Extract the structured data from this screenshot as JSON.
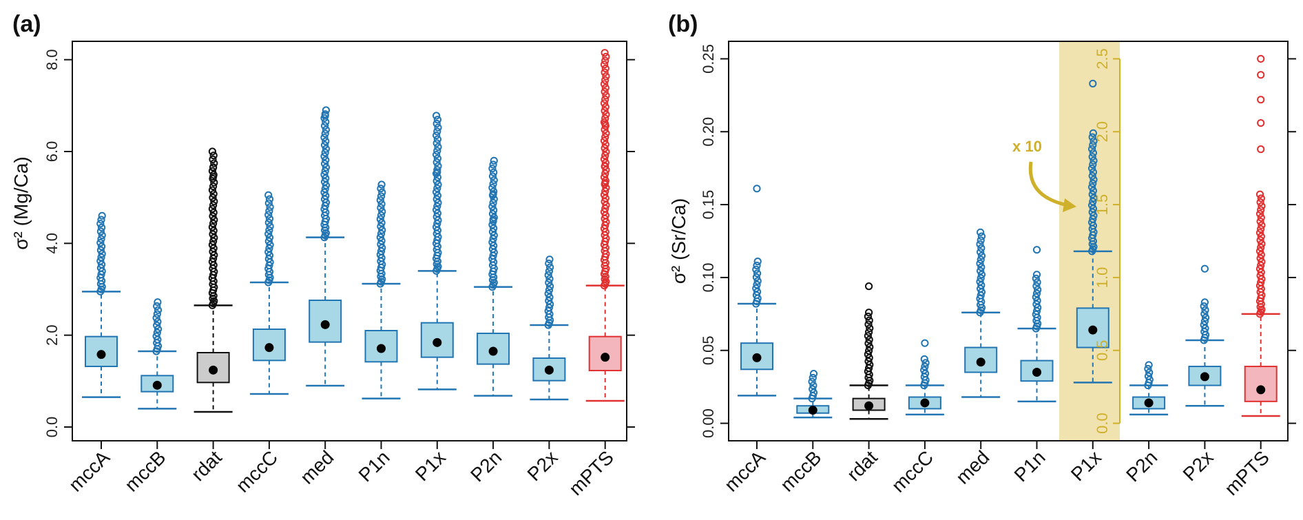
{
  "colors": {
    "blue_fill": "#a8d8e6",
    "blue_line": "#2275b3",
    "gray_fill": "#cccccc",
    "gray_line": "#111111",
    "red_fill": "#f4b6bd",
    "red_line": "#e03030",
    "highlight": "#f1e3b0",
    "gold": "#cfb02a"
  },
  "chart_data": [
    {
      "id": "a",
      "type": "boxplot",
      "panel_label": "(a)",
      "ylabel": "σ² (Mg/Ca)",
      "ylim": [
        -0.3,
        8.4
      ],
      "yticks": [
        "0.0",
        "2.0",
        "4.0",
        "6.0",
        "8.0"
      ],
      "ytick_values": [
        0,
        2,
        4,
        6,
        8
      ],
      "categories": [
        "mccA",
        "mccB",
        "rdat",
        "mccC",
        "med",
        "P1n",
        "P1x",
        "P2n",
        "P2x",
        "mPTS"
      ],
      "box_colors": [
        "blue",
        "blue",
        "gray",
        "blue",
        "blue",
        "blue",
        "blue",
        "blue",
        "blue",
        "red"
      ],
      "boxes": [
        {
          "lo": 0.65,
          "q1": 1.32,
          "q3": 1.97,
          "hi": 2.95,
          "mean": 1.58,
          "outlier_max": 4.6
        },
        {
          "lo": 0.4,
          "q1": 0.77,
          "q3": 1.12,
          "hi": 1.65,
          "mean": 0.91,
          "outlier_max": 2.72
        },
        {
          "lo": 0.33,
          "q1": 0.97,
          "q3": 1.62,
          "hi": 2.65,
          "mean": 1.24,
          "outlier_max": 6.0,
          "extra_outliers": [
            5.65,
            5.45
          ]
        },
        {
          "lo": 0.72,
          "q1": 1.45,
          "q3": 2.13,
          "hi": 3.15,
          "mean": 1.73,
          "outlier_max": 5.05
        },
        {
          "lo": 0.9,
          "q1": 1.85,
          "q3": 2.76,
          "hi": 4.13,
          "mean": 2.23,
          "outlier_max": 6.9,
          "extra_outliers": [
            6.78
          ]
        },
        {
          "lo": 0.62,
          "q1": 1.42,
          "q3": 2.1,
          "hi": 3.12,
          "mean": 1.71,
          "outlier_max": 5.28
        },
        {
          "lo": 0.82,
          "q1": 1.52,
          "q3": 2.27,
          "hi": 3.4,
          "mean": 1.84,
          "outlier_max": 6.78,
          "extra_outliers": [
            5.55
          ]
        },
        {
          "lo": 0.68,
          "q1": 1.37,
          "q3": 2.04,
          "hi": 3.05,
          "mean": 1.65,
          "outlier_max": 5.8,
          "extra_outliers": [
            5.07,
            4.52
          ]
        },
        {
          "lo": 0.6,
          "q1": 1.01,
          "q3": 1.5,
          "hi": 2.22,
          "mean": 1.24,
          "outlier_max": 3.65
        },
        {
          "lo": 0.57,
          "q1": 1.23,
          "q3": 1.97,
          "hi": 3.08,
          "mean": 1.52,
          "outlier_max": 8.15,
          "extra_outliers": [
            6.6,
            5.68,
            5.32
          ]
        }
      ]
    },
    {
      "id": "b",
      "type": "boxplot",
      "panel_label": "(b)",
      "ylabel": "σ² (Sr/Ca)",
      "ylim": [
        -0.012,
        0.262
      ],
      "yticks": [
        "0.00",
        "0.05",
        "0.10",
        "0.15",
        "0.20",
        "0.25"
      ],
      "ytick_values": [
        0,
        0.05,
        0.1,
        0.15,
        0.2,
        0.25
      ],
      "secondary_axis": {
        "applies_to": "P1x",
        "ticks": [
          "0.0",
          "0.5",
          "1.0",
          "1.5",
          "2.0",
          "2.5"
        ],
        "tick_values": [
          0,
          0.5,
          1.0,
          1.5,
          2.0,
          2.5
        ],
        "scale_factor": 10
      },
      "annotation": "x 10",
      "categories": [
        "mccA",
        "mccB",
        "rdat",
        "mccC",
        "med",
        "P1n",
        "P1x",
        "P2n",
        "P2x",
        "mPTS"
      ],
      "box_colors": [
        "blue",
        "blue",
        "gray",
        "blue",
        "blue",
        "blue",
        "blue",
        "blue",
        "blue",
        "red"
      ],
      "boxes": [
        {
          "lo": 0.019,
          "q1": 0.037,
          "q3": 0.055,
          "hi": 0.082,
          "mean": 0.045,
          "outlier_max": 0.111,
          "extra_outliers": [
            0.161
          ]
        },
        {
          "lo": 0.004,
          "q1": 0.007,
          "q3": 0.012,
          "hi": 0.017,
          "mean": 0.009,
          "outlier_max": 0.034
        },
        {
          "lo": 0.003,
          "q1": 0.009,
          "q3": 0.017,
          "hi": 0.026,
          "mean": 0.012,
          "outlier_max": 0.076,
          "extra_outliers": [
            0.094
          ]
        },
        {
          "lo": 0.006,
          "q1": 0.01,
          "q3": 0.018,
          "hi": 0.026,
          "mean": 0.014,
          "outlier_max": 0.044,
          "extra_outliers": [
            0.055
          ]
        },
        {
          "lo": 0.018,
          "q1": 0.035,
          "q3": 0.052,
          "hi": 0.076,
          "mean": 0.042,
          "outlier_max": 0.131
        },
        {
          "lo": 0.015,
          "q1": 0.029,
          "q3": 0.043,
          "hi": 0.065,
          "mean": 0.035,
          "outlier_max": 0.102,
          "extra_outliers": [
            0.119
          ]
        },
        {
          "lo": 0.028,
          "q1": 0.052,
          "q3": 0.079,
          "hi": 0.118,
          "mean": 0.064,
          "outlier_max": 0.199,
          "extra_outliers": [
            0.233
          ]
        },
        {
          "lo": 0.006,
          "q1": 0.01,
          "q3": 0.018,
          "hi": 0.026,
          "mean": 0.014,
          "outlier_max": 0.04
        },
        {
          "lo": 0.012,
          "q1": 0.026,
          "q3": 0.039,
          "hi": 0.057,
          "mean": 0.032,
          "outlier_max": 0.083,
          "extra_outliers": [
            0.106
          ]
        },
        {
          "lo": 0.005,
          "q1": 0.015,
          "q3": 0.039,
          "hi": 0.075,
          "mean": 0.023,
          "outlier_max": 0.157,
          "extra_outliers": [
            0.188,
            0.206,
            0.222,
            0.239,
            0.25
          ]
        }
      ]
    }
  ]
}
